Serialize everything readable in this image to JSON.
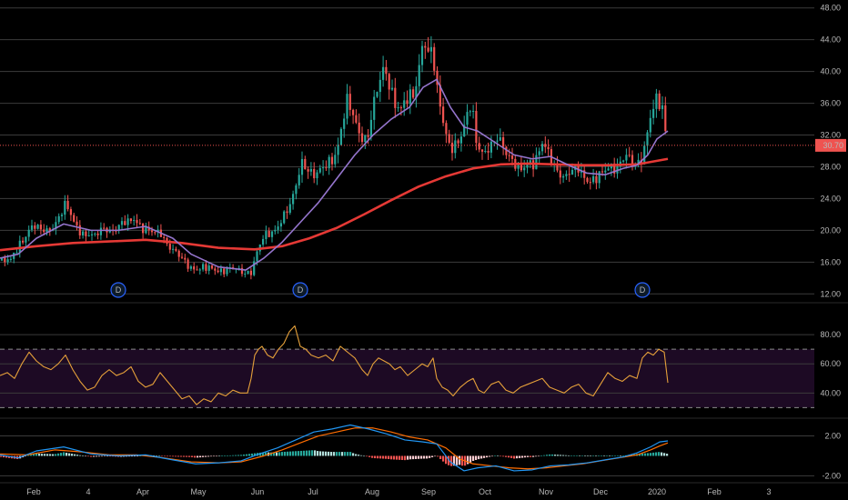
{
  "chart_data": [
    {
      "type": "candlestick",
      "title": "",
      "ylim": [
        11,
        49
      ],
      "y_ticks": [
        "12.00",
        "16.00",
        "20.00",
        "24.00",
        "28.00",
        "32.00",
        "36.00",
        "40.00",
        "44.00",
        "48.00"
      ],
      "last_price": "30.70",
      "last_price_value": 30.7,
      "x_labels": [
        "Feb",
        "4",
        "Apr",
        "May",
        "Jun",
        "Jul",
        "Aug",
        "Sep",
        "Oct",
        "Nov",
        "Dec",
        "2020",
        "Feb",
        "3"
      ],
      "price_path": [
        [
          0,
          16.2
        ],
        [
          12,
          16.0
        ],
        [
          22,
          18.5
        ],
        [
          34,
          20.5
        ],
        [
          46,
          19.8
        ],
        [
          56,
          20.4
        ],
        [
          66,
          21.8
        ],
        [
          72,
          23.0
        ],
        [
          82,
          21.0
        ],
        [
          92,
          19.6
        ],
        [
          104,
          19.0
        ],
        [
          114,
          20.5
        ],
        [
          126,
          20.0
        ],
        [
          140,
          21.0
        ],
        [
          148,
          21.8
        ],
        [
          158,
          20.0
        ],
        [
          168,
          19.5
        ],
        [
          176,
          20.0
        ],
        [
          186,
          18.0
        ],
        [
          196,
          16.6
        ],
        [
          206,
          15.8
        ],
        [
          216,
          15.2
        ],
        [
          228,
          15.0
        ],
        [
          240,
          15.2
        ],
        [
          252,
          15.0
        ],
        [
          266,
          14.8
        ],
        [
          276,
          15.0
        ],
        [
          282,
          17.0
        ],
        [
          290,
          19.0
        ],
        [
          300,
          20.0
        ],
        [
          310,
          21.5
        ],
        [
          320,
          23.0
        ],
        [
          326,
          26.0
        ],
        [
          332,
          29.0
        ],
        [
          338,
          28.0
        ],
        [
          346,
          26.5
        ],
        [
          354,
          27.5
        ],
        [
          362,
          29.0
        ],
        [
          370,
          30.0
        ],
        [
          376,
          33.0
        ],
        [
          382,
          36.0
        ],
        [
          390,
          34.0
        ],
        [
          398,
          32.0
        ],
        [
          404,
          31.5
        ],
        [
          410,
          35.0
        ],
        [
          416,
          38.0
        ],
        [
          422,
          41.0
        ],
        [
          428,
          39.0
        ],
        [
          434,
          36.0
        ],
        [
          440,
          34.5
        ],
        [
          448,
          36.5
        ],
        [
          456,
          38.0
        ],
        [
          462,
          42.0
        ],
        [
          466,
          44.5
        ],
        [
          470,
          41.0
        ],
        [
          474,
          42.5
        ],
        [
          480,
          38.0
        ],
        [
          486,
          35.0
        ],
        [
          492,
          31.5
        ],
        [
          498,
          30.0
        ],
        [
          506,
          31.0
        ],
        [
          512,
          34.0
        ],
        [
          518,
          37.0
        ],
        [
          524,
          31.0
        ],
        [
          532,
          29.0
        ],
        [
          540,
          30.5
        ],
        [
          548,
          32.5
        ],
        [
          556,
          30.0
        ],
        [
          564,
          28.0
        ],
        [
          572,
          27.5
        ],
        [
          580,
          29.0
        ],
        [
          588,
          28.5
        ],
        [
          596,
          30.5
        ],
        [
          604,
          29.5
        ],
        [
          612,
          28.0
        ],
        [
          620,
          26.5
        ],
        [
          628,
          27.0
        ],
        [
          636,
          28.0
        ],
        [
          646,
          26.5
        ],
        [
          654,
          26.0
        ],
        [
          662,
          27.0
        ],
        [
          670,
          28.5
        ],
        [
          678,
          28.0
        ],
        [
          688,
          29.0
        ],
        [
          696,
          28.5
        ],
        [
          704,
          29.0
        ],
        [
          710,
          31.5
        ],
        [
          716,
          34.5
        ],
        [
          722,
          36.0
        ],
        [
          728,
          35.5
        ],
        [
          734,
          30.7
        ]
      ],
      "sma_fast_path": [
        [
          0,
          16.5
        ],
        [
          20,
          17.0
        ],
        [
          40,
          19.0
        ],
        [
          70,
          20.8
        ],
        [
          100,
          20.0
        ],
        [
          130,
          20.0
        ],
        [
          160,
          20.5
        ],
        [
          190,
          19.0
        ],
        [
          210,
          17.0
        ],
        [
          240,
          15.4
        ],
        [
          270,
          15.0
        ],
        [
          290,
          16.5
        ],
        [
          310,
          18.5
        ],
        [
          330,
          21.0
        ],
        [
          350,
          23.5
        ],
        [
          370,
          26.5
        ],
        [
          390,
          29.5
        ],
        [
          410,
          32.0
        ],
        [
          430,
          34.0
        ],
        [
          450,
          35.5
        ],
        [
          465,
          38.0
        ],
        [
          480,
          39.0
        ],
        [
          495,
          35.5
        ],
        [
          510,
          33.0
        ],
        [
          525,
          32.5
        ],
        [
          545,
          31.0
        ],
        [
          565,
          29.5
        ],
        [
          585,
          29.0
        ],
        [
          605,
          29.3
        ],
        [
          625,
          28.2
        ],
        [
          645,
          27.2
        ],
        [
          665,
          27.0
        ],
        [
          685,
          27.8
        ],
        [
          700,
          28.2
        ],
        [
          712,
          29.5
        ],
        [
          722,
          31.5
        ],
        [
          734,
          32.5
        ]
      ],
      "sma_slow_path": [
        [
          0,
          17.5
        ],
        [
          40,
          18.0
        ],
        [
          80,
          18.4
        ],
        [
          120,
          18.6
        ],
        [
          160,
          18.8
        ],
        [
          200,
          18.4
        ],
        [
          240,
          17.8
        ],
        [
          280,
          17.6
        ],
        [
          310,
          18.0
        ],
        [
          340,
          19.0
        ],
        [
          370,
          20.3
        ],
        [
          400,
          22.0
        ],
        [
          430,
          23.8
        ],
        [
          460,
          25.5
        ],
        [
          490,
          26.8
        ],
        [
          520,
          27.8
        ],
        [
          550,
          28.3
        ],
        [
          580,
          28.4
        ],
        [
          610,
          28.3
        ],
        [
          640,
          28.2
        ],
        [
          670,
          28.2
        ],
        [
          700,
          28.3
        ],
        [
          734,
          29.0
        ]
      ],
      "dividend_markers": [
        "D",
        "D",
        "D"
      ]
    },
    {
      "type": "line",
      "indicator": "RSI",
      "ylim": [
        24,
        100
      ],
      "y_ticks": [
        "40.00",
        "60.00",
        "80.00"
      ],
      "band": [
        30,
        70
      ],
      "path": [
        [
          0,
          52
        ],
        [
          8,
          54
        ],
        [
          16,
          50
        ],
        [
          24,
          60
        ],
        [
          32,
          68
        ],
        [
          40,
          62
        ],
        [
          48,
          58
        ],
        [
          56,
          56
        ],
        [
          64,
          60
        ],
        [
          72,
          66
        ],
        [
          80,
          56
        ],
        [
          88,
          48
        ],
        [
          96,
          42
        ],
        [
          104,
          44
        ],
        [
          112,
          52
        ],
        [
          120,
          56
        ],
        [
          128,
          52
        ],
        [
          136,
          54
        ],
        [
          144,
          58
        ],
        [
          152,
          48
        ],
        [
          160,
          44
        ],
        [
          168,
          46
        ],
        [
          176,
          54
        ],
        [
          184,
          48
        ],
        [
          192,
          42
        ],
        [
          200,
          36
        ],
        [
          208,
          38
        ],
        [
          216,
          32
        ],
        [
          224,
          36
        ],
        [
          232,
          34
        ],
        [
          240,
          40
        ],
        [
          248,
          38
        ],
        [
          256,
          42
        ],
        [
          264,
          40
        ],
        [
          272,
          40
        ],
        [
          276,
          50
        ],
        [
          280,
          66
        ],
        [
          284,
          70
        ],
        [
          288,
          72
        ],
        [
          294,
          66
        ],
        [
          300,
          64
        ],
        [
          306,
          70
        ],
        [
          312,
          74
        ],
        [
          318,
          82
        ],
        [
          324,
          86
        ],
        [
          330,
          72
        ],
        [
          336,
          70
        ],
        [
          342,
          66
        ],
        [
          350,
          64
        ],
        [
          358,
          66
        ],
        [
          366,
          62
        ],
        [
          374,
          72
        ],
        [
          382,
          68
        ],
        [
          390,
          64
        ],
        [
          398,
          56
        ],
        [
          404,
          52
        ],
        [
          410,
          60
        ],
        [
          416,
          64
        ],
        [
          422,
          62
        ],
        [
          428,
          60
        ],
        [
          434,
          56
        ],
        [
          440,
          58
        ],
        [
          448,
          52
        ],
        [
          456,
          56
        ],
        [
          464,
          60
        ],
        [
          470,
          58
        ],
        [
          476,
          64
        ],
        [
          480,
          50
        ],
        [
          486,
          44
        ],
        [
          492,
          42
        ],
        [
          498,
          38
        ],
        [
          506,
          44
        ],
        [
          514,
          48
        ],
        [
          520,
          50
        ],
        [
          526,
          42
        ],
        [
          532,
          40
        ],
        [
          540,
          46
        ],
        [
          548,
          48
        ],
        [
          556,
          42
        ],
        [
          564,
          40
        ],
        [
          572,
          44
        ],
        [
          580,
          46
        ],
        [
          588,
          48
        ],
        [
          596,
          50
        ],
        [
          604,
          44
        ],
        [
          612,
          42
        ],
        [
          620,
          40
        ],
        [
          628,
          44
        ],
        [
          636,
          46
        ],
        [
          644,
          40
        ],
        [
          652,
          38
        ],
        [
          660,
          46
        ],
        [
          668,
          54
        ],
        [
          676,
          50
        ],
        [
          684,
          48
        ],
        [
          692,
          52
        ],
        [
          700,
          50
        ],
        [
          706,
          64
        ],
        [
          712,
          68
        ],
        [
          718,
          66
        ],
        [
          724,
          70
        ],
        [
          730,
          68
        ],
        [
          734,
          47
        ]
      ]
    },
    {
      "type": "macd",
      "indicator": "MACD",
      "ylim": [
        -2.6,
        3.6
      ],
      "y_ticks": [
        "2.00",
        "-2.00"
      ],
      "macd_path": [
        [
          0,
          0.1
        ],
        [
          20,
          -0.2
        ],
        [
          40,
          0.5
        ],
        [
          70,
          0.9
        ],
        [
          100,
          0.2
        ],
        [
          130,
          0.0
        ],
        [
          160,
          0.1
        ],
        [
          190,
          -0.4
        ],
        [
          215,
          -0.8
        ],
        [
          240,
          -0.7
        ],
        [
          265,
          -0.5
        ],
        [
          285,
          0.2
        ],
        [
          305,
          0.8
        ],
        [
          325,
          1.6
        ],
        [
          345,
          2.4
        ],
        [
          365,
          2.7
        ],
        [
          385,
          3.1
        ],
        [
          405,
          2.7
        ],
        [
          425,
          2.2
        ],
        [
          445,
          1.6
        ],
        [
          465,
          1.4
        ],
        [
          480,
          1.2
        ],
        [
          495,
          -0.6
        ],
        [
          510,
          -1.5
        ],
        [
          525,
          -1.2
        ],
        [
          545,
          -1.0
        ],
        [
          565,
          -1.5
        ],
        [
          585,
          -1.4
        ],
        [
          605,
          -1.0
        ],
        [
          625,
          -0.9
        ],
        [
          645,
          -0.7
        ],
        [
          665,
          -0.4
        ],
        [
          685,
          -0.1
        ],
        [
          700,
          0.3
        ],
        [
          715,
          0.9
        ],
        [
          725,
          1.4
        ],
        [
          734,
          1.5
        ]
      ],
      "signal_path": [
        [
          0,
          0.2
        ],
        [
          30,
          0.1
        ],
        [
          60,
          0.6
        ],
        [
          90,
          0.4
        ],
        [
          120,
          0.1
        ],
        [
          150,
          0.1
        ],
        [
          180,
          -0.2
        ],
        [
          210,
          -0.6
        ],
        [
          240,
          -0.7
        ],
        [
          265,
          -0.6
        ],
        [
          290,
          0.0
        ],
        [
          310,
          0.6
        ],
        [
          330,
          1.3
        ],
        [
          350,
          2.0
        ],
        [
          370,
          2.4
        ],
        [
          390,
          2.8
        ],
        [
          410,
          2.8
        ],
        [
          430,
          2.4
        ],
        [
          450,
          1.9
        ],
        [
          470,
          1.6
        ],
        [
          490,
          0.8
        ],
        [
          505,
          -0.3
        ],
        [
          520,
          -0.8
        ],
        [
          540,
          -1.0
        ],
        [
          560,
          -1.2
        ],
        [
          580,
          -1.3
        ],
        [
          600,
          -1.2
        ],
        [
          620,
          -1.0
        ],
        [
          640,
          -0.8
        ],
        [
          660,
          -0.5
        ],
        [
          680,
          -0.2
        ],
        [
          700,
          0.1
        ],
        [
          715,
          0.6
        ],
        [
          725,
          1.0
        ],
        [
          734,
          1.3
        ]
      ]
    }
  ]
}
